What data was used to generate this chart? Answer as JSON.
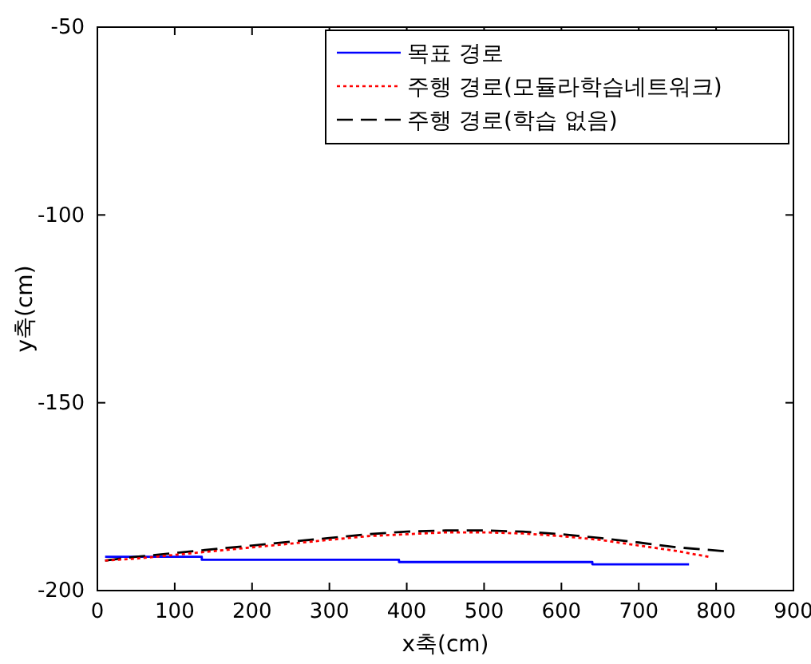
{
  "chart_data": {
    "type": "line",
    "xlabel": "x축(cm)",
    "ylabel": "y축(cm)",
    "xlim": [
      0,
      900
    ],
    "ylim": [
      -200,
      -50
    ],
    "xticks": [
      0,
      100,
      200,
      300,
      400,
      500,
      600,
      700,
      800,
      900
    ],
    "yticks": [
      -200,
      -150,
      -100,
      -50
    ],
    "grid": false,
    "legend": "top right",
    "series": [
      {
        "name": "목표 경로",
        "color": "#0000ff",
        "line_style": "solid",
        "x": [
          10,
          135,
          135,
          390,
          390,
          640,
          640,
          765
        ],
        "values": [
          -191,
          -191,
          -191.8,
          -191.8,
          -192.4,
          -192.4,
          -193,
          -193
        ]
      },
      {
        "name": "주행 경로(모듈라학습네트워크)",
        "color": "#ff0000",
        "line_style": "dotted",
        "x": [
          10,
          50,
          100,
          150,
          200,
          250,
          300,
          350,
          400,
          450,
          500,
          550,
          600,
          650,
          700,
          750,
          790
        ],
        "values": [
          -192,
          -191.5,
          -190.5,
          -189.5,
          -188.5,
          -187.5,
          -186.5,
          -185.5,
          -185,
          -184.5,
          -184.5,
          -184.8,
          -185.5,
          -186.5,
          -188,
          -189.5,
          -191
        ]
      },
      {
        "name": "주행 경로(학습 없음)",
        "color": "#000000",
        "line_style": "dashed",
        "x": [
          10,
          50,
          100,
          150,
          200,
          250,
          300,
          350,
          400,
          450,
          500,
          550,
          600,
          650,
          700,
          750,
          810
        ],
        "values": [
          -192,
          -191,
          -190,
          -189,
          -188,
          -187,
          -186,
          -185,
          -184.3,
          -184,
          -184,
          -184.3,
          -185,
          -186,
          -187.2,
          -188.5,
          -189.5
        ]
      }
    ]
  }
}
